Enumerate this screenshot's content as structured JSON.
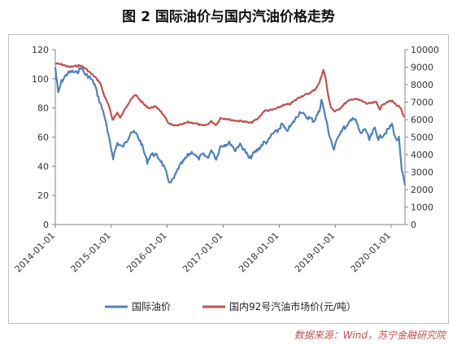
{
  "title": "图 2 国际油价与国内汽油价格走势",
  "source": "数据来源：Wind，苏宁金融研究院",
  "colors": {
    "intl": "#4f81bd",
    "domestic": "#c0504d",
    "axis": "#868686"
  },
  "chart_data": {
    "type": "line",
    "legend_position": "bottom",
    "grid": false,
    "x_ticks": [
      "2014-01-01",
      "2015-01-01",
      "2016-01-01",
      "2017-01-01",
      "2018-01-01",
      "2019-01-01",
      "2020-01-01"
    ],
    "x_range": [
      "2014-01-01",
      "2020-03-31"
    ],
    "y_left": {
      "min": 0,
      "max": 120,
      "ticks": [
        0,
        20,
        40,
        60,
        80,
        100,
        120
      ]
    },
    "y_right": {
      "min": 0,
      "max": 10000,
      "ticks": [
        0,
        1000,
        2000,
        3000,
        4000,
        5000,
        6000,
        7000,
        8000,
        9000,
        10000
      ]
    },
    "series": [
      {
        "name": "国际油价",
        "axis": "left",
        "points": [
          [
            "2014-01-01",
            108
          ],
          [
            "2014-01-20",
            90
          ],
          [
            "2014-02-10",
            98
          ],
          [
            "2014-03-15",
            103
          ],
          [
            "2014-04-15",
            105
          ],
          [
            "2014-05-20",
            104
          ],
          [
            "2014-06-20",
            108
          ],
          [
            "2014-07-15",
            103
          ],
          [
            "2014-08-15",
            101
          ],
          [
            "2014-09-15",
            96
          ],
          [
            "2014-10-15",
            85
          ],
          [
            "2014-11-15",
            76
          ],
          [
            "2014-12-15",
            60
          ],
          [
            "2015-01-13",
            46
          ],
          [
            "2015-02-10",
            56
          ],
          [
            "2015-03-15",
            53
          ],
          [
            "2015-04-15",
            58
          ],
          [
            "2015-05-10",
            64
          ],
          [
            "2015-06-15",
            62
          ],
          [
            "2015-07-15",
            56
          ],
          [
            "2015-08-24",
            43
          ],
          [
            "2015-09-15",
            48
          ],
          [
            "2015-10-15",
            48
          ],
          [
            "2015-11-20",
            44
          ],
          [
            "2015-12-20",
            37
          ],
          [
            "2016-01-20",
            28
          ],
          [
            "2016-02-15",
            32
          ],
          [
            "2016-03-15",
            39
          ],
          [
            "2016-04-20",
            44
          ],
          [
            "2016-05-20",
            48
          ],
          [
            "2016-06-15",
            50
          ],
          [
            "2016-07-20",
            45
          ],
          [
            "2016-08-20",
            48
          ],
          [
            "2016-09-20",
            46
          ],
          [
            "2016-10-20",
            51
          ],
          [
            "2016-11-15",
            45
          ],
          [
            "2016-12-15",
            54
          ],
          [
            "2017-01-15",
            55
          ],
          [
            "2017-02-15",
            56
          ],
          [
            "2017-03-20",
            51
          ],
          [
            "2017-04-15",
            55
          ],
          [
            "2017-05-15",
            52
          ],
          [
            "2017-06-20",
            45
          ],
          [
            "2017-07-20",
            49
          ],
          [
            "2017-08-20",
            52
          ],
          [
            "2017-09-20",
            56
          ],
          [
            "2017-10-20",
            57
          ],
          [
            "2017-11-15",
            62
          ],
          [
            "2017-12-20",
            64
          ],
          [
            "2018-01-20",
            69
          ],
          [
            "2018-02-15",
            64
          ],
          [
            "2018-03-20",
            68
          ],
          [
            "2018-04-20",
            73
          ],
          [
            "2018-05-20",
            78
          ],
          [
            "2018-06-20",
            74
          ],
          [
            "2018-07-20",
            73
          ],
          [
            "2018-08-15",
            71
          ],
          [
            "2018-09-20",
            78
          ],
          [
            "2018-10-03",
            86
          ],
          [
            "2018-10-25",
            76
          ],
          [
            "2018-11-20",
            63
          ],
          [
            "2018-12-24",
            51
          ],
          [
            "2019-01-20",
            61
          ],
          [
            "2019-02-20",
            66
          ],
          [
            "2019-03-20",
            67
          ],
          [
            "2019-04-25",
            74
          ],
          [
            "2019-05-20",
            70
          ],
          [
            "2019-06-15",
            62
          ],
          [
            "2019-07-15",
            66
          ],
          [
            "2019-08-10",
            58
          ],
          [
            "2019-09-16",
            66
          ],
          [
            "2019-10-10",
            59
          ],
          [
            "2019-11-15",
            62
          ],
          [
            "2019-12-20",
            66
          ],
          [
            "2020-01-06",
            69
          ],
          [
            "2020-02-01",
            58
          ],
          [
            "2020-02-20",
            59
          ],
          [
            "2020-03-10",
            37
          ],
          [
            "2020-03-31",
            27
          ]
        ]
      },
      {
        "name": "国内92号汽油市场价(元/吨）",
        "axis": "right",
        "points": [
          [
            "2014-01-01",
            9200
          ],
          [
            "2014-02-15",
            9150
          ],
          [
            "2014-04-01",
            9000
          ],
          [
            "2014-06-15",
            9100
          ],
          [
            "2014-07-20",
            8900
          ],
          [
            "2014-08-20",
            8650
          ],
          [
            "2014-09-20",
            8400
          ],
          [
            "2014-10-20",
            8100
          ],
          [
            "2014-11-15",
            7400
          ],
          [
            "2014-12-15",
            6800
          ],
          [
            "2015-01-10",
            6000
          ],
          [
            "2015-02-10",
            6400
          ],
          [
            "2015-03-01",
            6100
          ],
          [
            "2015-04-01",
            6600
          ],
          [
            "2015-05-10",
            7200
          ],
          [
            "2015-06-10",
            7400
          ],
          [
            "2015-07-10",
            7100
          ],
          [
            "2015-08-10",
            6800
          ],
          [
            "2015-09-10",
            6650
          ],
          [
            "2015-10-10",
            6750
          ],
          [
            "2015-11-10",
            6600
          ],
          [
            "2015-12-10",
            6200
          ],
          [
            "2016-01-15",
            5750
          ],
          [
            "2016-02-15",
            5650
          ],
          [
            "2016-04-01",
            5700
          ],
          [
            "2016-05-15",
            5850
          ],
          [
            "2016-07-01",
            5800
          ],
          [
            "2016-08-15",
            5650
          ],
          [
            "2016-09-15",
            5700
          ],
          [
            "2016-10-15",
            5900
          ],
          [
            "2016-11-15",
            5700
          ],
          [
            "2016-12-15",
            6100
          ],
          [
            "2017-01-15",
            6050
          ],
          [
            "2017-03-15",
            5950
          ],
          [
            "2017-05-15",
            5900
          ],
          [
            "2017-06-25",
            5800
          ],
          [
            "2017-08-15",
            6050
          ],
          [
            "2017-09-25",
            6500
          ],
          [
            "2017-11-15",
            6550
          ],
          [
            "2017-12-20",
            6650
          ],
          [
            "2018-01-20",
            6800
          ],
          [
            "2018-03-15",
            6900
          ],
          [
            "2018-05-15",
            7300
          ],
          [
            "2018-07-15",
            7500
          ],
          [
            "2018-08-20",
            7700
          ],
          [
            "2018-09-20",
            8100
          ],
          [
            "2018-10-15",
            8850
          ],
          [
            "2018-10-30",
            8400
          ],
          [
            "2018-11-15",
            7400
          ],
          [
            "2018-12-05",
            6700
          ],
          [
            "2018-12-31",
            6450
          ],
          [
            "2019-02-01",
            6650
          ],
          [
            "2019-03-15",
            7000
          ],
          [
            "2019-05-01",
            7200
          ],
          [
            "2019-06-15",
            7100
          ],
          [
            "2019-08-01",
            6900
          ],
          [
            "2019-09-25",
            7000
          ],
          [
            "2019-10-20",
            6600
          ],
          [
            "2019-11-10",
            6900
          ],
          [
            "2019-12-15",
            7050
          ],
          [
            "2020-01-10",
            7050
          ],
          [
            "2020-02-01",
            6850
          ],
          [
            "2020-03-01",
            6700
          ],
          [
            "2020-03-20",
            6200
          ],
          [
            "2020-03-31",
            6150
          ]
        ]
      }
    ]
  }
}
